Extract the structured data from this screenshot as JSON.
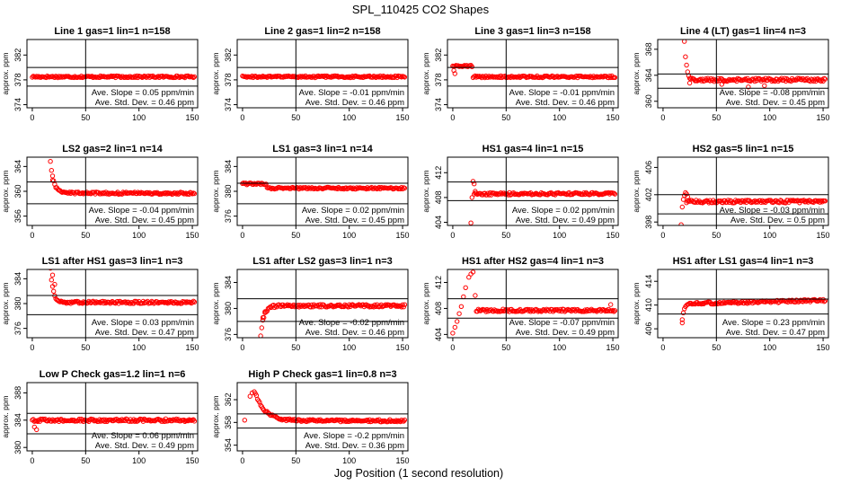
{
  "figure": {
    "title": "SPL_110425  CO2 Shapes",
    "xlabel": "Jog Position (1 second resolution)"
  },
  "chart_data": [
    {
      "type": "scatter",
      "title": "Line 1 gas=1 lin=1 n=158",
      "ylabel": "approx. ppm",
      "xlim": [
        -5,
        155
      ],
      "ylim": [
        373.5,
        384.5
      ],
      "xticks": [
        0,
        50,
        100,
        150
      ],
      "yticks": [
        374,
        378,
        382
      ],
      "hlines": [
        380.0,
        377.0
      ],
      "vline": 50,
      "annotations": [
        "Ave. Slope = 0.05  ppm/min",
        "Ave. Std. Dev. = 0.46  ppm"
      ],
      "series": [
        {
          "profile": "flat",
          "x_start": 0,
          "x_end": 152,
          "level": 378.5,
          "noise": 0.15
        }
      ]
    },
    {
      "type": "scatter",
      "title": "Line 2 gas=1 lin=2 n=158",
      "ylabel": "approx. ppm",
      "xlim": [
        -5,
        155
      ],
      "ylim": [
        373.5,
        384.5
      ],
      "xticks": [
        0,
        50,
        100,
        150
      ],
      "yticks": [
        374,
        378,
        382
      ],
      "hlines": [
        380.0,
        377.0
      ],
      "vline": 50,
      "annotations": [
        "Ave. Slope = -0.01  ppm/min",
        "Ave. Std. Dev. = 0.46  ppm"
      ],
      "series": [
        {
          "profile": "flat",
          "x_start": 0,
          "x_end": 152,
          "level": 378.5,
          "noise": 0.15
        }
      ]
    },
    {
      "type": "scatter",
      "title": "Line 3 gas=1 lin=3 n=158",
      "ylabel": "approx. ppm",
      "xlim": [
        -5,
        155
      ],
      "ylim": [
        373.5,
        384.5
      ],
      "xticks": [
        0,
        50,
        100,
        150
      ],
      "yticks": [
        374,
        378,
        382
      ],
      "hlines": [
        380.0,
        377.0
      ],
      "vline": 50,
      "annotations": [
        "Ave. Slope = -0.01  ppm/min",
        "Ave. Std. Dev. = 0.46  ppm"
      ],
      "series": [
        {
          "profile": "hump",
          "x_start": 0,
          "x_end": 152,
          "level": 378.5,
          "noise": 0.15,
          "start": 380.2,
          "end_x": 18,
          "extra": [
            [
              1,
              379.5
            ],
            [
              2,
              379.0
            ]
          ]
        }
      ]
    },
    {
      "type": "scatter",
      "title": "Line 4 (LT) gas=1 lin=4 n=3",
      "ylabel": "approx. ppm",
      "xlim": [
        -5,
        155
      ],
      "ylim": [
        359,
        369.5
      ],
      "xticks": [
        0,
        50,
        100,
        150
      ],
      "yticks": [
        360,
        364,
        368
      ],
      "hlines": [
        364.2,
        362.0
      ],
      "vline": 50,
      "annotations": [
        "Ave. Slope = -0.08  ppm/min",
        "Ave. Std. Dev. = 0.45  ppm"
      ],
      "series": [
        {
          "profile": "decay",
          "x_start": 20,
          "x_end": 152,
          "level": 363.3,
          "noise": 0.25,
          "start": 369.3,
          "tau": 2,
          "extra": [
            [
              25,
              362.8
            ],
            [
              55,
              362.6
            ],
            [
              80,
              362.2
            ],
            [
              95,
              362.4
            ]
          ]
        }
      ]
    },
    {
      "type": "scatter",
      "title": "LS2 gas=2 lin=1 n=14",
      "ylabel": "approx. ppm",
      "xlim": [
        -5,
        155
      ],
      "ylim": [
        354.5,
        365.5
      ],
      "xticks": [
        0,
        50,
        100,
        150
      ],
      "yticks": [
        356,
        360,
        364
      ],
      "hlines": [
        361.5,
        358.0
      ],
      "vline": 50,
      "annotations": [
        "Ave. Slope = -0.04  ppm/min",
        "Ave. Std. Dev. = 0.45  ppm"
      ],
      "series": [
        {
          "profile": "decay",
          "x_start": 17,
          "x_end": 152,
          "level": 359.7,
          "noise": 0.18,
          "start": 365.0,
          "tau": 3,
          "extra": [
            [
              19,
              361.8
            ]
          ]
        }
      ]
    },
    {
      "type": "scatter",
      "title": "LS1 gas=3 lin=1 n=14",
      "ylabel": "approx. ppm",
      "xlim": [
        -5,
        155
      ],
      "ylim": [
        374.5,
        385.5
      ],
      "xticks": [
        0,
        50,
        100,
        150
      ],
      "yticks": [
        376,
        380,
        384
      ],
      "hlines": [
        381.3,
        378.0
      ],
      "vline": 50,
      "annotations": [
        "Ave. Slope = 0.02  ppm/min",
        "Ave. Std. Dev. = 0.45  ppm"
      ],
      "series": [
        {
          "profile": "hump",
          "x_start": 0,
          "x_end": 152,
          "level": 380.5,
          "noise": 0.15,
          "start": 381.2,
          "end_x": 22
        }
      ]
    },
    {
      "type": "scatter",
      "title": "HS1 gas=4 lin=1 n=15",
      "ylabel": "approx. ppm",
      "xlim": [
        -5,
        155
      ],
      "ylim": [
        403.5,
        414.5
      ],
      "xticks": [
        0,
        50,
        100,
        150
      ],
      "yticks": [
        404,
        408,
        412
      ],
      "hlines": [
        410.5,
        407.5
      ],
      "vline": 50,
      "annotations": [
        "Ave. Slope = 0.02  ppm/min",
        "Ave. Std. Dev. = 0.49  ppm"
      ],
      "series": [
        {
          "profile": "flat",
          "x_start": 20,
          "x_end": 152,
          "level": 408.6,
          "noise": 0.2,
          "extra": [
            [
              17,
              403.9
            ],
            [
              18,
              408.0
            ],
            [
              19,
              410.6
            ],
            [
              20,
              410.2
            ],
            [
              21,
              409.0
            ]
          ]
        }
      ]
    },
    {
      "type": "scatter",
      "title": "HS2 gas=5 lin=1 n=15",
      "ylabel": "approx. ppm",
      "xlim": [
        -5,
        155
      ],
      "ylim": [
        397.5,
        407.5
      ],
      "xticks": [
        0,
        50,
        100,
        150
      ],
      "yticks": [
        398,
        402,
        406
      ],
      "hlines": [
        402.0,
        399.2
      ],
      "vline": 50,
      "annotations": [
        "Ave. Slope = -0.03  ppm/min",
        "Ave. Std. Dev. = 0.5  ppm"
      ],
      "series": [
        {
          "profile": "flat",
          "x_start": 22,
          "x_end": 152,
          "level": 401.0,
          "noise": 0.2,
          "extra": [
            [
              17,
              397.6
            ],
            [
              18,
              400.2
            ],
            [
              19,
              401.3
            ],
            [
              20,
              401.9
            ],
            [
              21,
              402.3
            ],
            [
              22,
              402.1
            ],
            [
              23,
              401.7
            ]
          ]
        }
      ]
    },
    {
      "type": "scatter",
      "title": "LS1 after HS1 gas=3 lin=1 n=3",
      "ylabel": "approx. ppm",
      "xlim": [
        -5,
        155
      ],
      "ylim": [
        374.5,
        385.5
      ],
      "xticks": [
        0,
        50,
        100,
        150
      ],
      "yticks": [
        376,
        380,
        384
      ],
      "hlines": [
        381.3,
        378.2
      ],
      "vline": 50,
      "annotations": [
        "Ave. Slope = 0.03  ppm/min",
        "Ave. Std. Dev. = 0.47  ppm"
      ],
      "series": [
        {
          "profile": "decay",
          "x_start": 17,
          "x_end": 152,
          "level": 380.2,
          "noise": 0.2,
          "start": 385.6,
          "tau": 2.5,
          "extra": [
            [
              19,
              384.6
            ],
            [
              21,
              383.1
            ]
          ]
        }
      ]
    },
    {
      "type": "scatter",
      "title": "LS1 after LS2 gas=3 lin=1 n=3",
      "ylabel": "approx. ppm",
      "xlim": [
        -5,
        155
      ],
      "ylim": [
        375.5,
        386
      ],
      "xticks": [
        0,
        50,
        100,
        150
      ],
      "yticks": [
        376,
        380,
        384
      ],
      "hlines": [
        381.5,
        378.0
      ],
      "vline": 50,
      "annotations": [
        "Ave. Slope = -0.02  ppm/min",
        "Ave. Std. Dev. = 0.46  ppm"
      ],
      "series": [
        {
          "profile": "rise",
          "x_start": 17,
          "x_end": 152,
          "level": 380.4,
          "noise": 0.2,
          "start": 375.8,
          "tau": 3,
          "extra": [
            [
              19,
              378.6
            ],
            [
              21,
              379.5
            ]
          ]
        }
      ]
    },
    {
      "type": "scatter",
      "title": "HS1 after HS2 gas=4 lin=1 n=3",
      "ylabel": "approx. ppm",
      "xlim": [
        -5,
        155
      ],
      "ylim": [
        403.5,
        414
      ],
      "xticks": [
        0,
        50,
        100,
        150
      ],
      "yticks": [
        404,
        408,
        412
      ],
      "hlines": [
        409.5,
        406.5
      ],
      "vline": 50,
      "annotations": [
        "Ave. Slope = -0.07  ppm/min",
        "Ave. Std. Dev. = 0.49  ppm"
      ],
      "series": [
        {
          "profile": "flat",
          "x_start": 22,
          "x_end": 152,
          "level": 407.7,
          "noise": 0.2,
          "extra": [
            [
              0,
              404.2
            ],
            [
              2,
              405.1
            ],
            [
              4,
              406.0
            ],
            [
              6,
              407.2
            ],
            [
              8,
              408.3
            ],
            [
              10,
              409.8
            ],
            [
              12,
              411.2
            ],
            [
              15,
              412.8
            ],
            [
              17,
              413.3
            ],
            [
              19,
              413.6
            ],
            [
              21,
              410.0
            ],
            [
              148,
              408.6
            ]
          ]
        }
      ]
    },
    {
      "type": "scatter",
      "title": "HS1 after LS1 gas=4 lin=1 n=3",
      "ylabel": "approx. ppm",
      "xlim": [
        -5,
        155
      ],
      "ylim": [
        404.5,
        416
      ],
      "xticks": [
        0,
        50,
        100,
        150
      ],
      "yticks": [
        406,
        410,
        414
      ],
      "hlines": [
        411.0,
        408.5
      ],
      "vline": 50,
      "annotations": [
        "Ave. Slope = 0.23  ppm/min",
        "Ave. Std. Dev. = 0.47  ppm"
      ],
      "series": [
        {
          "profile": "rise",
          "x_start": 18,
          "x_end": 152,
          "level": 410.2,
          "noise": 0.2,
          "start": 407.4,
          "tau": 2,
          "trend": 0.6,
          "extra": [
            [
              18,
              407.0
            ]
          ]
        }
      ]
    },
    {
      "type": "scatter",
      "title": "Low P Check gas=1.2 lin=1 n=6",
      "ylabel": "approx. ppm",
      "xlim": [
        -5,
        155
      ],
      "ylim": [
        379.5,
        389.5
      ],
      "xticks": [
        0,
        50,
        100,
        150
      ],
      "yticks": [
        380,
        384,
        388
      ],
      "hlines": [
        385.0,
        382.0
      ],
      "vline": 50,
      "annotations": [
        "Ave. Slope = 0.06  ppm/min",
        "Ave. Std. Dev. = 0.49  ppm"
      ],
      "series": [
        {
          "profile": "flat",
          "x_start": 0,
          "x_end": 152,
          "level": 384.0,
          "noise": 0.2,
          "extra": [
            [
              2,
              383.0
            ],
            [
              4,
              382.6
            ]
          ]
        }
      ]
    },
    {
      "type": "scatter",
      "title": "High P Check gas=1 lin=0.8 n=3",
      "ylabel": "approx. ppm",
      "xlim": [
        -5,
        155
      ],
      "ylim": [
        353,
        365
      ],
      "xticks": [
        0,
        50,
        100,
        150
      ],
      "yticks": [
        354,
        358,
        362
      ],
      "hlines": [
        359.5,
        357.0
      ],
      "vline": 50,
      "annotations": [
        "Ave. Slope = -0.2  ppm/min",
        "Ave. Std. Dev. = 0.36  ppm"
      ],
      "series": [
        {
          "profile": "decay",
          "x_start": 12,
          "x_end": 152,
          "level": 358.3,
          "noise": 0.2,
          "start": 363.2,
          "tau": 9,
          "extra": [
            [
              2,
              358.4
            ],
            [
              7,
              362.6
            ],
            [
              9,
              363.2
            ],
            [
              11,
              363.4
            ]
          ]
        }
      ]
    }
  ]
}
